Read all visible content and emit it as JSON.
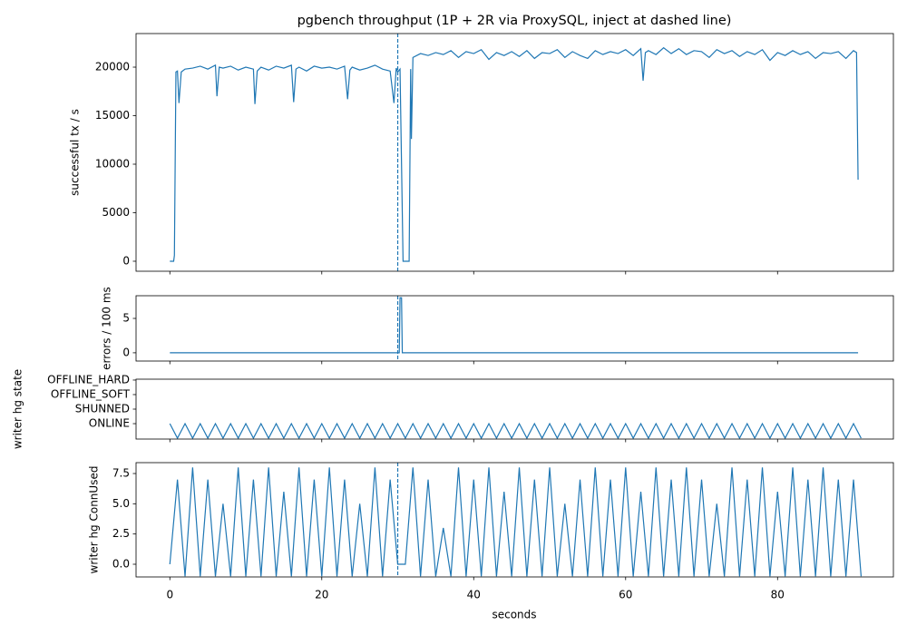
{
  "chart_data": [
    {
      "type": "line",
      "title": "pgbench throughput (1P + 2R via ProxySQL, inject at dashed line)",
      "ylabel": "successful tx / s",
      "xlim": [
        -4.45,
        95.25
      ],
      "ylim": [
        -1030,
        23460
      ],
      "yticks": [
        0,
        5000,
        10000,
        15000,
        20000
      ],
      "vline": 30,
      "color": "#1f77b4",
      "x": [
        0,
        0.5,
        0.6,
        0.8,
        1,
        1.2,
        1.5,
        2,
        3,
        4,
        5,
        6,
        6.2,
        6.5,
        7,
        8,
        9,
        10,
        11,
        11.2,
        11.5,
        12,
        13,
        14,
        15,
        16,
        16.3,
        16.6,
        17,
        18,
        19,
        20,
        21,
        22,
        23,
        23.4,
        23.7,
        24,
        25,
        26,
        27,
        28,
        29,
        29.5,
        29.8,
        30,
        30.3,
        30.7,
        31.5,
        31.7,
        31.8,
        32,
        33,
        34,
        35,
        36,
        37,
        38,
        39,
        40,
        41,
        42,
        43,
        44,
        45,
        46,
        47,
        48,
        49,
        50,
        51,
        52,
        53,
        54,
        55,
        56,
        57,
        58,
        59,
        60,
        61,
        62,
        62.3,
        62.6,
        63,
        64,
        65,
        66,
        67,
        68,
        69,
        70,
        71,
        72,
        73,
        74,
        75,
        76,
        77,
        78,
        79,
        80,
        81,
        82,
        83,
        84,
        85,
        86,
        87,
        88,
        89,
        90,
        90.4,
        90.6
      ],
      "values": [
        0,
        0,
        600,
        19500,
        19600,
        16300,
        19500,
        19800,
        19900,
        20100,
        19800,
        20200,
        17000,
        20000,
        19900,
        20100,
        19700,
        20000,
        19800,
        16200,
        19600,
        20000,
        19700,
        20100,
        19900,
        20200,
        16400,
        19800,
        20000,
        19600,
        20100,
        19900,
        20000,
        19800,
        20100,
        16700,
        19700,
        20000,
        19700,
        19900,
        20200,
        19800,
        19600,
        16300,
        19900,
        19500,
        19800,
        0,
        0,
        19800,
        12600,
        21000,
        21400,
        21200,
        21500,
        21300,
        21700,
        21000,
        21600,
        21400,
        21800,
        20800,
        21500,
        21200,
        21600,
        21100,
        21700,
        20900,
        21500,
        21400,
        21800,
        21000,
        21600,
        21200,
        20900,
        21700,
        21300,
        21600,
        21400,
        21800,
        21200,
        21900,
        18600,
        21500,
        21700,
        21300,
        22000,
        21400,
        21900,
        21300,
        21700,
        21600,
        21000,
        21800,
        21400,
        21700,
        21100,
        21600,
        21300,
        21800,
        20700,
        21500,
        21200,
        21700,
        21300,
        21600,
        20900,
        21500,
        21400,
        21600,
        20900,
        21700,
        21500,
        8400
      ]
    },
    {
      "type": "line",
      "ylabel": "errors / 100 ms",
      "xlim": [
        -4.45,
        95.25
      ],
      "ylim": [
        -1.2,
        8.3
      ],
      "yticks": [
        0,
        5
      ],
      "vline": 30,
      "color": "#1f77b4",
      "x": [
        0,
        30.2,
        30.3,
        30.5,
        30.6,
        90.6
      ],
      "values": [
        0,
        0,
        8,
        8,
        0,
        0
      ]
    },
    {
      "type": "line",
      "ylabel": "writer hg state",
      "xlim": [
        -4.45,
        95.25
      ],
      "ylim": [
        -1.06,
        3.06
      ],
      "yticks": [
        {
          "value": 0,
          "label": "ONLINE"
        },
        {
          "value": 1,
          "label": "SHUNNED"
        },
        {
          "value": 2,
          "label": "OFFLINE_SOFT"
        },
        {
          "value": 3,
          "label": "OFFLINE_HARD"
        }
      ],
      "color": "#1f77b4",
      "x": [
        0,
        1,
        2,
        3,
        4,
        5,
        6,
        7,
        8,
        9,
        10,
        11,
        12,
        13,
        14,
        15,
        16,
        17,
        18,
        19,
        20,
        21,
        22,
        23,
        24,
        25,
        26,
        27,
        28,
        29,
        30,
        31,
        32,
        33,
        34,
        35,
        36,
        37,
        38,
        39,
        40,
        41,
        42,
        43,
        44,
        45,
        46,
        47,
        48,
        49,
        50,
        51,
        52,
        53,
        54,
        55,
        56,
        57,
        58,
        59,
        60,
        61,
        62,
        63,
        64,
        65,
        66,
        67,
        68,
        69,
        70,
        71,
        72,
        73,
        74,
        75,
        76,
        77,
        78,
        79,
        80,
        81,
        82,
        83,
        84,
        85,
        86,
        87,
        88,
        89,
        90,
        91
      ],
      "values": [
        0,
        -1,
        0,
        -1,
        0,
        -1,
        0,
        -1,
        0,
        -1,
        0,
        -1,
        0,
        -1,
        0,
        -1,
        0,
        -1,
        0,
        -1,
        0,
        -1,
        0,
        -1,
        0,
        -1,
        0,
        -1,
        0,
        -1,
        0,
        -1,
        0,
        -1,
        0,
        -1,
        0,
        -1,
        0,
        -1,
        0,
        -1,
        0,
        -1,
        0,
        -1,
        0,
        -1,
        0,
        -1,
        0,
        -1,
        0,
        -1,
        0,
        -1,
        0,
        -1,
        0,
        -1,
        0,
        -1,
        0,
        -1,
        0,
        -1,
        0,
        -1,
        0,
        -1,
        0,
        -1,
        0,
        -1,
        0,
        -1,
        0,
        -1,
        0,
        -1,
        0,
        -1,
        0,
        -1,
        0,
        -1,
        0,
        -1,
        0,
        -1,
        0,
        -1
      ]
    },
    {
      "type": "line",
      "ylabel": "writer hg ConnUsed",
      "xlabel": "seconds",
      "xlim": [
        -4.45,
        95.25
      ],
      "ylim": [
        -1.05,
        8.4
      ],
      "yticks": [
        {
          "value": 0,
          "label": "0.0"
        },
        2.5,
        {
          "value": 5,
          "label": "5.0"
        },
        7.5
      ],
      "xticks": [
        0,
        20,
        40,
        60,
        80
      ],
      "vline": 30,
      "color": "#1f77b4",
      "x": [
        0,
        1,
        2,
        3,
        4,
        5,
        6,
        7,
        8,
        9,
        10,
        11,
        12,
        13,
        14,
        15,
        16,
        17,
        18,
        19,
        20,
        21,
        22,
        23,
        24,
        25,
        26,
        27,
        28,
        29,
        30,
        31,
        32,
        33,
        34,
        35,
        36,
        37,
        38,
        39,
        40,
        41,
        42,
        43,
        44,
        45,
        46,
        47,
        48,
        49,
        50,
        51,
        52,
        53,
        54,
        55,
        56,
        57,
        58,
        59,
        60,
        61,
        62,
        63,
        64,
        65,
        66,
        67,
        68,
        69,
        70,
        71,
        72,
        73,
        74,
        75,
        76,
        77,
        78,
        79,
        80,
        81,
        82,
        83,
        84,
        85,
        86,
        87,
        88,
        89,
        90,
        91
      ],
      "values": [
        0,
        7,
        -1,
        8,
        -1,
        7,
        -1,
        5,
        -1,
        8,
        -1,
        7,
        -1,
        8,
        -1,
        6,
        -1,
        8,
        -1,
        7,
        -1,
        8,
        -1,
        7,
        -1,
        5,
        -1,
        8,
        -1,
        7,
        0,
        0,
        8,
        -1,
        7,
        -1,
        3,
        -1,
        8,
        -1,
        7,
        -1,
        8,
        -1,
        6,
        -1,
        8,
        -1,
        7,
        -1,
        8,
        -1,
        5,
        -1,
        7,
        -1,
        8,
        -1,
        7,
        -1,
        8,
        -1,
        6,
        -1,
        8,
        -1,
        7,
        -1,
        8,
        -1,
        7,
        -1,
        5,
        -1,
        8,
        -1,
        7,
        -1,
        8,
        -1,
        6,
        -1,
        8,
        -1,
        7,
        -1,
        8,
        -1,
        7,
        -1,
        7,
        -1
      ]
    }
  ]
}
